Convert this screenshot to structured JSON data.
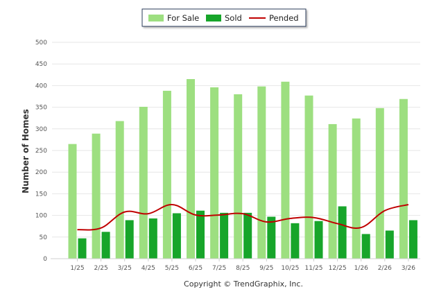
{
  "chart_data": {
    "type": "bar",
    "title": "",
    "xlabel": "",
    "ylabel": "Number of Homes",
    "ylim": [
      0,
      500
    ],
    "yticks": [
      0,
      50,
      100,
      150,
      200,
      250,
      300,
      350,
      400,
      450,
      500
    ],
    "grid": true,
    "legend_position": "top-center",
    "categories": [
      "1/25",
      "2/25",
      "3/25",
      "4/25",
      "5/25",
      "6/25",
      "7/25",
      "8/25",
      "9/25",
      "10/25",
      "11/25",
      "12/25",
      "1/26",
      "2/26",
      "3/26"
    ],
    "series": [
      {
        "name": "For Sale",
        "type": "bar",
        "color": "#9ddf80",
        "values": [
          265,
          289,
          318,
          351,
          388,
          415,
          396,
          380,
          398,
          409,
          377,
          311,
          324,
          348,
          369
        ]
      },
      {
        "name": "Sold",
        "type": "bar",
        "color": "#17a52a",
        "values": [
          47,
          62,
          89,
          93,
          105,
          111,
          106,
          106,
          97,
          82,
          87,
          121,
          57,
          65,
          89
        ]
      },
      {
        "name": "Pended",
        "type": "line",
        "color": "#c00000",
        "values": [
          67,
          71,
          108,
          104,
          125,
          101,
          101,
          104,
          85,
          93,
          95,
          81,
          72,
          111,
          125
        ]
      }
    ]
  },
  "footer": {
    "copyright": "Copyright © TrendGraphix, Inc."
  }
}
